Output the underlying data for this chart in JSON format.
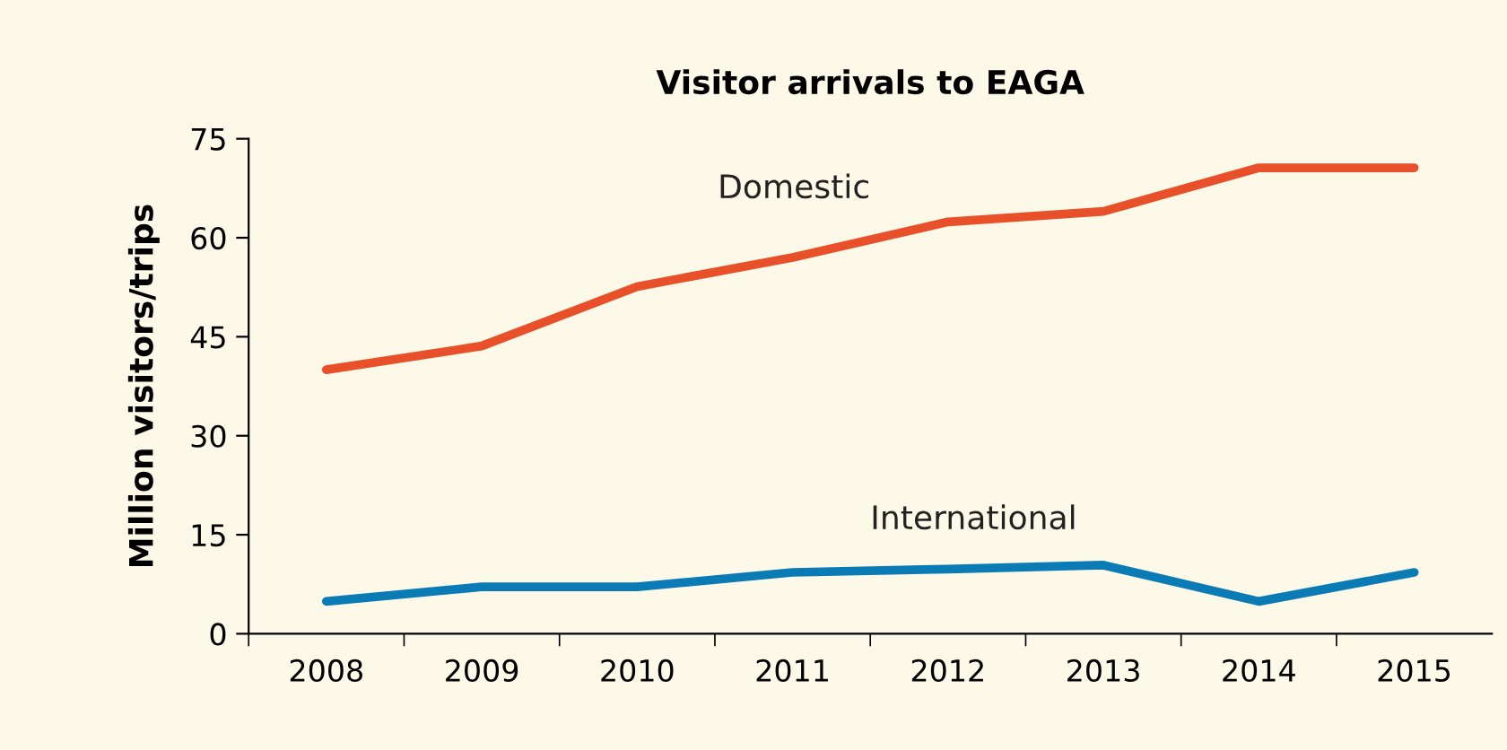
{
  "chart_data": {
    "type": "line",
    "title": "Visitor arrivals to EAGA",
    "ylabel": "Million visitors/trips",
    "categories": [
      "2008",
      "2009",
      "2010",
      "2011",
      "2012",
      "2013",
      "2014",
      "2015"
    ],
    "series": [
      {
        "name": "Domestic",
        "color": "#e8502a",
        "values": [
          40,
          43.6,
          52.6,
          57,
          62.4,
          64,
          70.6,
          70.6
        ]
      },
      {
        "name": "International",
        "color": "#0a7bb5",
        "values": [
          4.9,
          7.1,
          7.1,
          9.3,
          9.8,
          10.4,
          4.9,
          9.3
        ]
      }
    ],
    "ylim": [
      0,
      75
    ],
    "yticks": [
      0,
      15,
      30,
      45,
      60,
      75
    ],
    "grid": false,
    "legend": false,
    "marker": "none",
    "line_style": "solid"
  }
}
